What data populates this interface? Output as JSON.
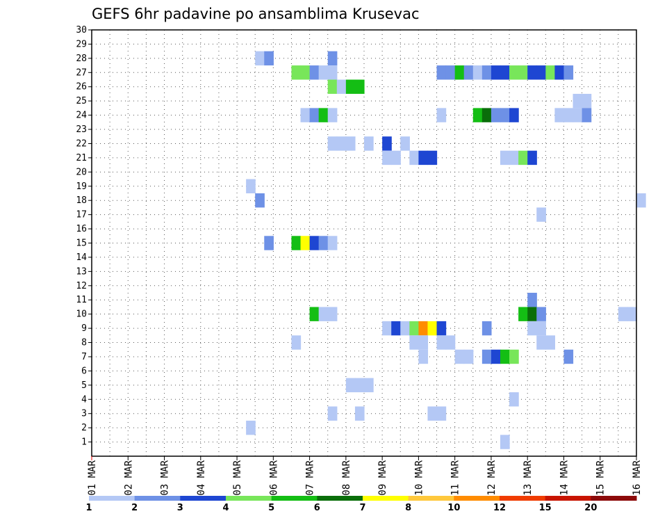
{
  "chart_data": {
    "type": "heatmap",
    "title": "GEFS 6hr padavine po ansamblima Krusevac",
    "xlabel": "",
    "ylabel": "",
    "x_tick_labels": [
      "01 MAR",
      "02 MAR",
      "03 MAR",
      "04 MAR",
      "05 MAR",
      "06 MAR",
      "07 MAR",
      "08 MAR",
      "09 MAR",
      "10 MAR",
      "11 MAR",
      "12 MAR",
      "13 MAR",
      "14 MAR",
      "15 MAR",
      "16 MAR"
    ],
    "x_range_days": [
      0,
      15
    ],
    "y_tick_labels": [
      "1",
      "2",
      "3",
      "4",
      "5",
      "6",
      "7",
      "8",
      "9",
      "10",
      "11",
      "12",
      "13",
      "14",
      "15",
      "16",
      "17",
      "18",
      "19",
      "20",
      "21",
      "22",
      "23",
      "24",
      "25",
      "26",
      "27",
      "28",
      "29",
      "30"
    ],
    "y_range": [
      0,
      30
    ],
    "grid": true,
    "legend": {
      "position": "bottom",
      "thresholds": [
        "1",
        "2",
        "3",
        "4",
        "5",
        "6",
        "7",
        "8",
        "10",
        "12",
        "15",
        "20"
      ],
      "colors": [
        "#b4c8f5",
        "#6e91e6",
        "#1e46d2",
        "#78e65a",
        "#14be14",
        "#0a6e0a",
        "#ffff00",
        "#ffc83c",
        "#ff8c00",
        "#f03c00",
        "#c81400",
        "#8c0a0a"
      ]
    },
    "cells": [
      {
        "m": 28,
        "x": [
          [
            4.5,
            0
          ],
          [
            4.75,
            1
          ]
        ]
      },
      {
        "m": 28,
        "x": [
          [
            6.5,
            1
          ]
        ]
      },
      {
        "m": 27,
        "x": [
          [
            5.5,
            3
          ],
          [
            5.75,
            3
          ],
          [
            6.0,
            1
          ],
          [
            6.25,
            0
          ],
          [
            6.5,
            0
          ]
        ]
      },
      {
        "m": 27,
        "x": [
          [
            9.5,
            1
          ],
          [
            9.75,
            1
          ],
          [
            10.0,
            4
          ],
          [
            10.25,
            1
          ],
          [
            10.5,
            0
          ],
          [
            10.75,
            1
          ],
          [
            11.0,
            2
          ],
          [
            11.25,
            2
          ],
          [
            11.5,
            3
          ],
          [
            11.75,
            3
          ],
          [
            12.0,
            2
          ],
          [
            12.25,
            2
          ],
          [
            12.5,
            3
          ],
          [
            12.75,
            2
          ],
          [
            13.0,
            1
          ]
        ]
      },
      {
        "m": 26,
        "x": [
          [
            6.5,
            3
          ],
          [
            6.75,
            0
          ],
          [
            7.0,
            4
          ],
          [
            7.25,
            4
          ]
        ]
      },
      {
        "m": 25,
        "x": [
          [
            13.25,
            0
          ],
          [
            13.5,
            0
          ]
        ]
      },
      {
        "m": 24,
        "x": [
          [
            5.75,
            0
          ],
          [
            6.0,
            1
          ],
          [
            6.25,
            4
          ],
          [
            6.5,
            0
          ]
        ]
      },
      {
        "m": 24,
        "x": [
          [
            9.5,
            0
          ],
          [
            10.5,
            4
          ],
          [
            10.75,
            5
          ],
          [
            11.0,
            1
          ],
          [
            11.25,
            1
          ],
          [
            11.5,
            2
          ],
          [
            12.75,
            0
          ],
          [
            13.0,
            0
          ],
          [
            13.25,
            0
          ],
          [
            13.5,
            1
          ]
        ]
      },
      {
        "m": 22,
        "x": [
          [
            6.5,
            0
          ],
          [
            6.75,
            0
          ],
          [
            7.0,
            0
          ],
          [
            7.5,
            0
          ],
          [
            8.0,
            2
          ],
          [
            8.5,
            0
          ]
        ]
      },
      {
        "m": 21,
        "x": [
          [
            8.0,
            0
          ],
          [
            8.25,
            0
          ],
          [
            8.75,
            0
          ],
          [
            9.0,
            2
          ],
          [
            9.25,
            2
          ]
        ]
      },
      {
        "m": 21,
        "x": [
          [
            11.25,
            0
          ],
          [
            11.5,
            0
          ],
          [
            11.75,
            3
          ],
          [
            12.0,
            2
          ]
        ]
      },
      {
        "m": 19,
        "x": [
          [
            4.25,
            0
          ]
        ]
      },
      {
        "m": 18,
        "x": [
          [
            4.5,
            1
          ]
        ]
      },
      {
        "m": 18,
        "x": [
          [
            15.0,
            0
          ]
        ]
      },
      {
        "m": 17,
        "x": [
          [
            12.25,
            0
          ]
        ]
      },
      {
        "m": 15,
        "x": [
          [
            4.75,
            1
          ]
        ]
      },
      {
        "m": 15,
        "x": [
          [
            5.5,
            4
          ],
          [
            5.75,
            6
          ],
          [
            6.0,
            2
          ],
          [
            6.25,
            1
          ],
          [
            6.5,
            0
          ]
        ]
      },
      {
        "m": 11,
        "x": [
          [
            12.0,
            1
          ]
        ]
      },
      {
        "m": 10,
        "x": [
          [
            6.0,
            4
          ],
          [
            6.25,
            0
          ],
          [
            6.5,
            0
          ]
        ]
      },
      {
        "m": 10,
        "x": [
          [
            11.75,
            4
          ],
          [
            12.0,
            5
          ],
          [
            12.25,
            1
          ]
        ]
      },
      {
        "m": 10,
        "x": [
          [
            14.5,
            0
          ],
          [
            14.75,
            0
          ]
        ]
      },
      {
        "m": 9,
        "x": [
          [
            8.0,
            0
          ],
          [
            8.25,
            2
          ],
          [
            8.5,
            0
          ],
          [
            8.75,
            3
          ],
          [
            9.0,
            8
          ],
          [
            9.25,
            6
          ],
          [
            9.5,
            2
          ]
        ]
      },
      {
        "m": 9,
        "x": [
          [
            10.75,
            1
          ]
        ]
      },
      {
        "m": 9,
        "x": [
          [
            12.0,
            0
          ],
          [
            12.25,
            0
          ]
        ]
      },
      {
        "m": 8,
        "x": [
          [
            5.5,
            0
          ]
        ]
      },
      {
        "m": 8,
        "x": [
          [
            8.75,
            0
          ],
          [
            9.0,
            0
          ],
          [
            9.5,
            0
          ],
          [
            9.75,
            0
          ]
        ]
      },
      {
        "m": 8,
        "x": [
          [
            12.25,
            0
          ],
          [
            12.5,
            0
          ]
        ]
      },
      {
        "m": 7,
        "x": [
          [
            9.0,
            0
          ],
          [
            10.0,
            0
          ],
          [
            10.25,
            0
          ]
        ]
      },
      {
        "m": 7,
        "x": [
          [
            10.75,
            1
          ],
          [
            11.0,
            2
          ],
          [
            11.25,
            4
          ],
          [
            11.5,
            3
          ]
        ]
      },
      {
        "m": 7,
        "x": [
          [
            13.0,
            1
          ]
        ]
      },
      {
        "m": 5,
        "x": [
          [
            7.0,
            0
          ],
          [
            7.25,
            0
          ],
          [
            7.5,
            0
          ]
        ]
      },
      {
        "m": 4,
        "x": [
          [
            11.5,
            0
          ]
        ]
      },
      {
        "m": 3,
        "x": [
          [
            6.5,
            0
          ]
        ]
      },
      {
        "m": 3,
        "x": [
          [
            7.25,
            0
          ]
        ]
      },
      {
        "m": 3,
        "x": [
          [
            9.25,
            0
          ],
          [
            9.5,
            0
          ]
        ]
      },
      {
        "m": 2,
        "x": [
          [
            4.25,
            0
          ]
        ]
      },
      {
        "m": 1,
        "x": [
          [
            11.25,
            0
          ]
        ]
      }
    ]
  }
}
